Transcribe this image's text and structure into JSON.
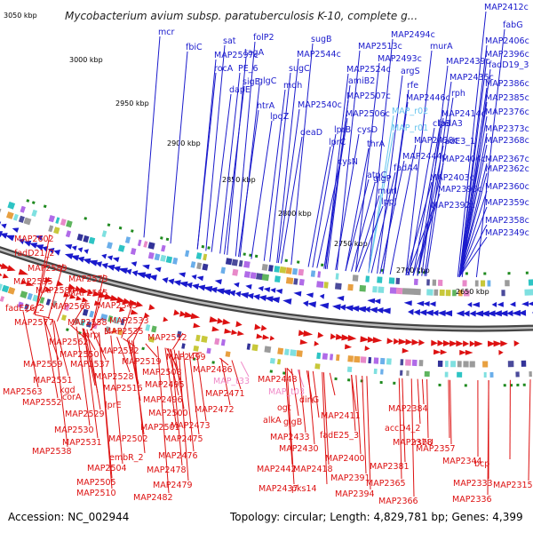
{
  "title": "Mycobacterium avium subsp. paratuberculosis K-10, complete g...",
  "footer": {
    "accession": "Accession: NC_002944",
    "summary": "Topology: circular; Length: 4,829,781 bp; Genes: 4,399"
  },
  "colors": {
    "forward": "#1a1acc",
    "reverse": "#dd1111",
    "pink": "#f08ac8",
    "lightblue": "#66c4ee"
  },
  "kbp_labels": [
    "3050 kbp",
    "3000 kbp",
    "2950 kbp",
    "2900 kbp",
    "2850 kbp",
    "2800 kbp",
    "2750 kbp",
    "2700 kbp",
    "2650 kbp"
  ],
  "forward_labels": [
    {
      "text": "MAP2412c"
    },
    {
      "text": "fabG"
    },
    {
      "text": "MAP2406c"
    },
    {
      "text": "MAP2396c"
    },
    {
      "text": "fadD19_3"
    },
    {
      "text": "MAP2386c"
    },
    {
      "text": "MAP2385c"
    },
    {
      "text": "MAP2376c"
    },
    {
      "text": "MAP2373c"
    },
    {
      "text": "MAP2368c"
    },
    {
      "text": "MAP2367c"
    },
    {
      "text": "MAP2362c"
    },
    {
      "text": "MAP2360c"
    },
    {
      "text": "MAP2359c"
    },
    {
      "text": "MAP2358c"
    },
    {
      "text": "MAP2349c"
    },
    {
      "text": "MAP2494c"
    },
    {
      "text": "murA"
    },
    {
      "text": "MAP2439c"
    },
    {
      "text": "MAP2435c"
    },
    {
      "text": "rph"
    },
    {
      "text": "MAP2414c"
    },
    {
      "text": "MAP2513c"
    },
    {
      "text": "MAP2493c"
    },
    {
      "text": "argS"
    },
    {
      "text": "rfe"
    },
    {
      "text": "MAP2446c"
    },
    {
      "text": "MAP_r02",
      "color": "lightblue"
    },
    {
      "text": "MAP_r01",
      "color": "lightblue"
    },
    {
      "text": "clpS"
    },
    {
      "text": "fadA3"
    },
    {
      "text": "MAP2438c"
    },
    {
      "text": "fadE3_1"
    },
    {
      "text": "MAP2404c"
    },
    {
      "text": "MAP2444c"
    },
    {
      "text": "fadA4"
    },
    {
      "text": "MAP2403c"
    },
    {
      "text": "MAP2395c"
    },
    {
      "text": "glgP"
    },
    {
      "text": "murI"
    },
    {
      "text": "lppJ"
    },
    {
      "text": "MAP2392c"
    },
    {
      "text": "MAP2524c"
    },
    {
      "text": "amiB2"
    },
    {
      "text": "MAP2507c"
    },
    {
      "text": "MAP2506c"
    },
    {
      "text": "lprB"
    },
    {
      "text": "cysD"
    },
    {
      "text": "thrA"
    },
    {
      "text": "atpC"
    },
    {
      "text": "cysN"
    },
    {
      "text": "lprC"
    },
    {
      "text": "mcr"
    },
    {
      "text": "fbiC"
    },
    {
      "text": "sat"
    },
    {
      "text": "MAP2597c"
    },
    {
      "text": "rocA"
    },
    {
      "text": "folP2"
    },
    {
      "text": "tagA"
    },
    {
      "text": "PE_6"
    },
    {
      "text": "dapE"
    },
    {
      "text": "glgC"
    },
    {
      "text": "sigE"
    },
    {
      "text": "sugB"
    },
    {
      "text": "MAP2544c"
    },
    {
      "text": "sugC"
    },
    {
      "text": "mdh"
    },
    {
      "text": "htrA"
    },
    {
      "text": "lpqZ"
    },
    {
      "text": "MAP2540c"
    },
    {
      "text": "deaD"
    }
  ],
  "reverse_labels": [
    {
      "text": "MAP2602"
    },
    {
      "text": "fadD21_2"
    },
    {
      "text": "MAP2589"
    },
    {
      "text": "MAP2595"
    },
    {
      "text": "MAP2573"
    },
    {
      "text": "MAP2584"
    },
    {
      "text": "MAP2565"
    },
    {
      "text": "fadE26_2"
    },
    {
      "text": "MAP2566"
    },
    {
      "text": "MAP2543"
    },
    {
      "text": "MAP2577"
    },
    {
      "text": "MAP2558"
    },
    {
      "text": "MAP2533"
    },
    {
      "text": "mrp"
    },
    {
      "text": "MAP2535"
    },
    {
      "text": "MAP2562"
    },
    {
      "text": "MAP2512"
    },
    {
      "text": "MAP2550"
    },
    {
      "text": "MAP2532"
    },
    {
      "text": "MAP2559"
    },
    {
      "text": "MAP2537"
    },
    {
      "text": "MAP2519"
    },
    {
      "text": "MAP2499"
    },
    {
      "text": "MAP2528"
    },
    {
      "text": "MAP2508"
    },
    {
      "text": "MAP2486"
    },
    {
      "text": "MAP2551"
    },
    {
      "text": "MAP2516"
    },
    {
      "text": "MAP2495"
    },
    {
      "text": "MAP2563"
    },
    {
      "text": "kgd"
    },
    {
      "text": "MAP2552"
    },
    {
      "text": "corA"
    },
    {
      "text": "lprE"
    },
    {
      "text": "MAP2496"
    },
    {
      "text": "MAP2471"
    },
    {
      "text": "MAP2500"
    },
    {
      "text": "MAP2472"
    },
    {
      "text": "MAP2529"
    },
    {
      "text": "MAP2501"
    },
    {
      "text": "MAP2473"
    },
    {
      "text": "MAP2530"
    },
    {
      "text": "MAP2502"
    },
    {
      "text": "MAP2475"
    },
    {
      "text": "MAP2531"
    },
    {
      "text": "MAP2538"
    },
    {
      "text": "embR_2"
    },
    {
      "text": "MAP2476"
    },
    {
      "text": "MAP2504"
    },
    {
      "text": "MAP2478"
    },
    {
      "text": "MAP2505"
    },
    {
      "text": "MAP2479"
    },
    {
      "text": "MAP2510"
    },
    {
      "text": "MAP2482"
    },
    {
      "text": "MAP2448"
    },
    {
      "text": "MAP_t33",
      "color": "pink"
    },
    {
      "text": "MAP_t03",
      "color": "pink"
    },
    {
      "text": "ogt"
    },
    {
      "text": "glgB"
    },
    {
      "text": "dinG"
    },
    {
      "text": "alkA"
    },
    {
      "text": "MAP2411"
    },
    {
      "text": "MAP2433"
    },
    {
      "text": "fadE25_3"
    },
    {
      "text": "MAP2430"
    },
    {
      "text": "MAP2442"
    },
    {
      "text": "MAP2418"
    },
    {
      "text": "MAP2437"
    },
    {
      "text": "pks14"
    },
    {
      "text": "MAP2400"
    },
    {
      "text": "MAP2391"
    },
    {
      "text": "MAP2394"
    },
    {
      "text": "MAP2384"
    },
    {
      "text": "accD4_2"
    },
    {
      "text": "MAP2378"
    },
    {
      "text": "rsbU"
    },
    {
      "text": "MAP2381"
    },
    {
      "text": "MAP2357"
    },
    {
      "text": "MAP2365"
    },
    {
      "text": "MAP2344"
    },
    {
      "text": "MAP2366"
    },
    {
      "text": "MAP2333"
    },
    {
      "text": "MAP2336"
    },
    {
      "text": "bcp"
    },
    {
      "text": "MAP2315"
    }
  ]
}
